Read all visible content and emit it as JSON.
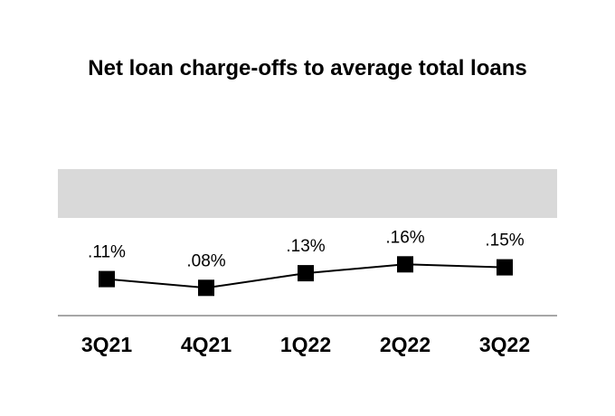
{
  "chart_data": {
    "type": "line",
    "title": "Net loan charge-offs to average total loans",
    "categories": [
      "3Q21",
      "4Q21",
      "1Q22",
      "2Q22",
      "3Q22"
    ],
    "values": [
      0.11,
      0.08,
      0.13,
      0.16,
      0.15
    ],
    "data_labels": [
      ".11%",
      ".08%",
      ".13%",
      ".16%",
      ".15%"
    ],
    "y_unit": "%",
    "line_color": "#000000",
    "marker_color": "#000000",
    "band_color": "#d9d9d9",
    "axis_color": "#a6a6a6",
    "grid": false,
    "legend": "none"
  }
}
